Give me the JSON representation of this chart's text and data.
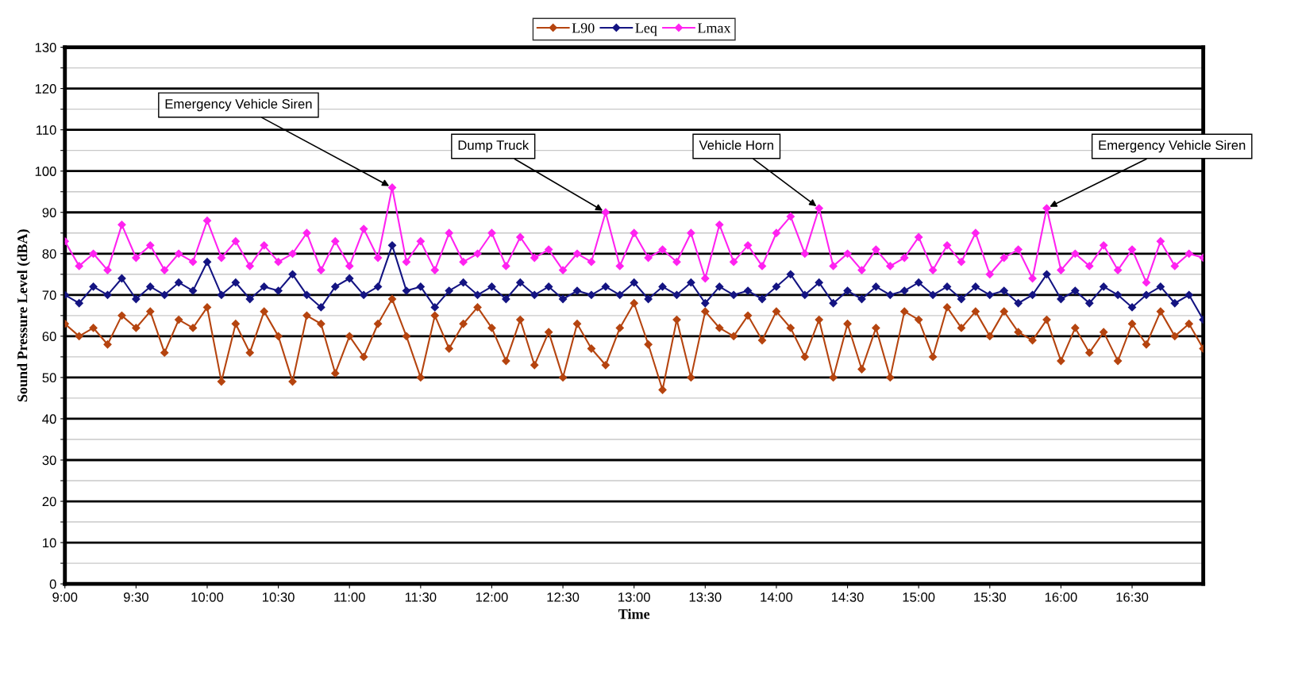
{
  "chart_data": {
    "type": "line",
    "xlabel": "Time",
    "ylabel": "Sound Pressure Level (dBA)",
    "x": [
      9.0,
      9.1,
      9.2,
      9.3,
      9.4,
      9.5,
      9.6,
      9.7,
      9.8,
      9.9,
      10.0,
      10.1,
      10.2,
      10.3,
      10.4,
      10.5,
      10.6,
      10.7,
      10.8,
      10.9,
      11.0,
      11.1,
      11.2,
      11.3,
      11.4,
      11.5,
      11.6,
      11.7,
      11.8,
      11.9,
      12.0,
      12.1,
      12.2,
      12.3,
      12.4,
      12.5,
      12.6,
      12.7,
      12.8,
      12.9,
      13.0,
      13.1,
      13.2,
      13.3,
      13.4,
      13.5,
      13.6,
      13.7,
      13.8,
      13.9,
      14.0,
      14.1,
      14.2,
      14.3,
      14.4,
      14.5,
      14.6,
      14.7,
      14.8,
      14.9,
      15.0,
      15.1,
      15.2,
      15.3,
      15.4,
      15.5,
      15.6,
      15.7,
      15.8,
      15.9,
      16.0,
      16.1,
      16.2,
      16.3,
      16.4,
      16.5,
      16.6,
      16.7,
      16.8,
      16.9,
      17.0
    ],
    "series": [
      {
        "name": "L90",
        "color": "#b5440f",
        "values": [
          63,
          60,
          62,
          58,
          65,
          62,
          66,
          56,
          64,
          62,
          67,
          49,
          63,
          56,
          66,
          60,
          49,
          65,
          63,
          51,
          60,
          55,
          63,
          69,
          60,
          50,
          65,
          57,
          63,
          67,
          62,
          54,
          64,
          53,
          61,
          50,
          63,
          57,
          53,
          62,
          68,
          58,
          47,
          64,
          50,
          66,
          62,
          60,
          65,
          59,
          66,
          62,
          55,
          64,
          50,
          63,
          52,
          62,
          50,
          66,
          64,
          55,
          67,
          62,
          66,
          60,
          66,
          61,
          59,
          64,
          54,
          62,
          56,
          61,
          54,
          63,
          58,
          66,
          60,
          63,
          57
        ]
      },
      {
        "name": "Leq",
        "color": "#141482",
        "values": [
          70,
          68,
          72,
          70,
          74,
          69,
          72,
          70,
          73,
          71,
          78,
          70,
          73,
          69,
          72,
          71,
          75,
          70,
          67,
          72,
          74,
          70,
          72,
          82,
          71,
          72,
          67,
          71,
          73,
          70,
          72,
          69,
          73,
          70,
          72,
          69,
          71,
          70,
          72,
          70,
          73,
          69,
          72,
          70,
          73,
          68,
          72,
          70,
          71,
          69,
          72,
          75,
          70,
          73,
          68,
          71,
          69,
          72,
          70,
          71,
          73,
          70,
          72,
          69,
          72,
          70,
          71,
          68,
          70,
          75,
          69,
          71,
          68,
          72,
          70,
          67,
          70,
          72,
          68,
          70,
          64
        ]
      },
      {
        "name": "Lmax",
        "color": "#ff22f0",
        "values": [
          83,
          77,
          80,
          76,
          87,
          79,
          82,
          76,
          80,
          78,
          88,
          79,
          83,
          77,
          82,
          78,
          80,
          85,
          76,
          83,
          77,
          86,
          79,
          96,
          78,
          83,
          76,
          85,
          78,
          80,
          85,
          77,
          84,
          79,
          81,
          76,
          80,
          78,
          90,
          77,
          85,
          79,
          81,
          78,
          85,
          74,
          87,
          78,
          82,
          77,
          85,
          89,
          80,
          91,
          77,
          80,
          76,
          81,
          77,
          79,
          84,
          76,
          82,
          78,
          85,
          75,
          79,
          81,
          74,
          91,
          76,
          80,
          77,
          82,
          76,
          81,
          73,
          83,
          77,
          80,
          79
        ]
      }
    ],
    "xlim": [
      9,
      17
    ],
    "xticks": [
      {
        "value": 9,
        "label": "9:00"
      },
      {
        "value": 9.5,
        "label": "9:30"
      },
      {
        "value": 10,
        "label": "10:00"
      },
      {
        "value": 10.5,
        "label": "10:30"
      },
      {
        "value": 11,
        "label": "11:00"
      },
      {
        "value": 11.5,
        "label": "11:30"
      },
      {
        "value": 12,
        "label": "12:00"
      },
      {
        "value": 12.5,
        "label": "12:30"
      },
      {
        "value": 13,
        "label": "13:00"
      },
      {
        "value": 13.5,
        "label": "13:30"
      },
      {
        "value": 14,
        "label": "14:00"
      },
      {
        "value": 14.5,
        "label": "14:30"
      },
      {
        "value": 15,
        "label": "15:00"
      },
      {
        "value": 15.5,
        "label": "15:30"
      },
      {
        "value": 16,
        "label": "16:00"
      },
      {
        "value": 16.5,
        "label": "16:30"
      }
    ],
    "ylim": [
      0,
      130
    ],
    "yticks": [
      0,
      {
        "value": 5,
        "label": null
      },
      10,
      {
        "value": 15,
        "label": null
      },
      20,
      {
        "value": 25,
        "label": null
      },
      30,
      {
        "value": 35,
        "label": null
      },
      40,
      {
        "value": 45,
        "label": null
      },
      50,
      {
        "value": 55,
        "label": null
      },
      60,
      {
        "value": 65,
        "label": null
      },
      70,
      {
        "value": 75,
        "label": null
      },
      80,
      {
        "value": 85,
        "label": null
      },
      90,
      {
        "value": 95,
        "label": null
      },
      100,
      {
        "value": 105,
        "label": null
      },
      110,
      {
        "value": 115,
        "label": null
      },
      120,
      {
        "value": 125,
        "label": null
      },
      130
    ],
    "grid": "y",
    "legend": "top",
    "marker": "diamond",
    "line_style": "solid",
    "annotations": [
      {
        "text": "Emergency Vehicle Siren",
        "x": 11.3,
        "y": 96
      },
      {
        "text": "Dump Truck",
        "x": 12.8,
        "y": 90
      },
      {
        "text": "Vehicle Horn",
        "x": 14.3,
        "y": 91
      },
      {
        "text": "Emergency Vehicle Siren",
        "x": 15.9,
        "y": 91
      }
    ]
  }
}
